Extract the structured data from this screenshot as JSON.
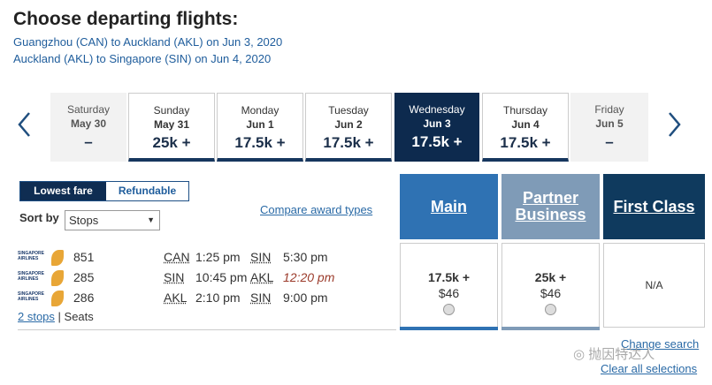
{
  "header": {
    "title": "Choose departing flights:",
    "routes": [
      "Guangzhou (CAN) to Auckland (AKL) on Jun 3, 2020",
      "Auckland (AKL) to Singapore (SIN) on Jun 4, 2020"
    ]
  },
  "dates": [
    {
      "day": "Saturday",
      "date": "May 30",
      "price": "–"
    },
    {
      "day": "Sunday",
      "date": "May 31",
      "price": "25k +"
    },
    {
      "day": "Monday",
      "date": "Jun 1",
      "price": "17.5k +"
    },
    {
      "day": "Tuesday",
      "date": "Jun 2",
      "price": "17.5k +"
    },
    {
      "day": "Wednesday",
      "date": "Jun 3",
      "price": "17.5k +"
    },
    {
      "day": "Thursday",
      "date": "Jun 4",
      "price": "17.5k +"
    },
    {
      "day": "Friday",
      "date": "Jun 5",
      "price": "–"
    }
  ],
  "tabs": [
    "Lowest fare",
    "Refundable"
  ],
  "sort": {
    "label": "Sort by",
    "value": "Stops"
  },
  "compare_link": "Compare award types",
  "fare_columns": [
    "Main",
    "Partner Business",
    "First Class"
  ],
  "flights": [
    {
      "logo": "SINGAPORE AIRLINES",
      "number": "851",
      "from": "CAN",
      "dep": "1:25 pm",
      "to": "SIN",
      "arr": "5:30 pm"
    },
    {
      "logo": "SINGAPORE AIRLINES",
      "number": "285",
      "from": "SIN",
      "dep": "10:45 pm",
      "to": "AKL",
      "arr": "12:20 pm"
    },
    {
      "logo": "SINGAPORE AIRLINES",
      "number": "286",
      "from": "AKL",
      "dep": "2:10 pm",
      "to": "SIN",
      "arr": "9:00 pm"
    }
  ],
  "stops": "2 stops",
  "seats": "Seats",
  "fares": [
    {
      "price": "17.5k +",
      "tax": "$46"
    },
    {
      "price": "25k +",
      "tax": "$46"
    },
    {
      "price": "N/A"
    }
  ],
  "links": [
    "Change search",
    "Clear all selections"
  ],
  "watermark": "抛因特达人"
}
